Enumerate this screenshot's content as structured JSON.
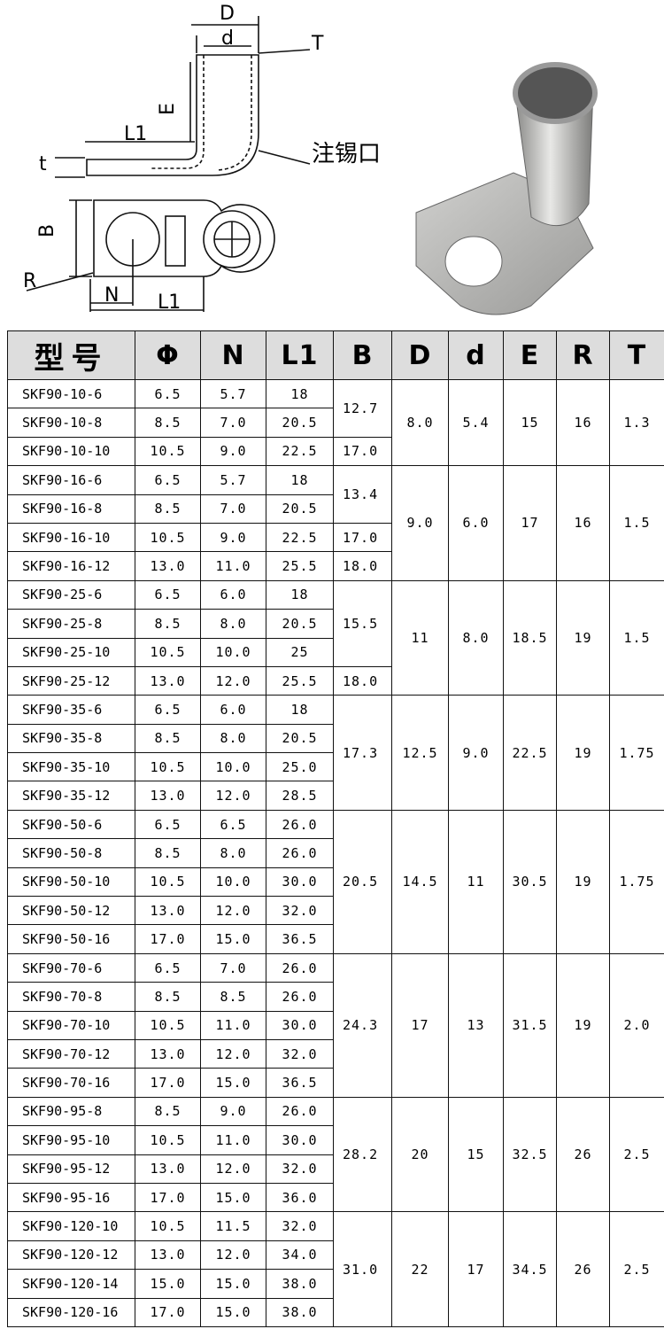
{
  "drawing": {
    "labels": [
      "D",
      "d",
      "T",
      "E",
      "L1",
      "t",
      "B",
      "R",
      "N",
      "L1",
      "注锡口"
    ]
  },
  "table": {
    "header": [
      "型号",
      "Φ",
      "N",
      "L1",
      "B",
      "D",
      "d",
      "E",
      "R",
      "T"
    ],
    "groups": [
      {
        "rows": [
          [
            "SKF90-10-6",
            "6.5",
            "5.7",
            "18",
            "12.7"
          ],
          [
            "SKF90-10-8",
            "8.5",
            "7.0",
            "20.5",
            null
          ],
          [
            "SKF90-10-10",
            "10.5",
            "9.0",
            "22.5",
            "17.0"
          ]
        ],
        "D": "8.0",
        "d": "5.4",
        "E": "15",
        "R": "16",
        "T": "1.3"
      },
      {
        "rows": [
          [
            "SKF90-16-6",
            "6.5",
            "5.7",
            "18",
            "13.4"
          ],
          [
            "SKF90-16-8",
            "8.5",
            "7.0",
            "20.5",
            null
          ],
          [
            "SKF90-16-10",
            "10.5",
            "9.0",
            "22.5",
            "17.0"
          ],
          [
            "SKF90-16-12",
            "13.0",
            "11.0",
            "25.5",
            "18.0"
          ]
        ],
        "D": "9.0",
        "d": "6.0",
        "E": "17",
        "R": "16",
        "T": "1.5"
      },
      {
        "rows": [
          [
            "SKF90-25-6",
            "6.5",
            "6.0",
            "18",
            "15.5"
          ],
          [
            "SKF90-25-8",
            "8.5",
            "8.0",
            "20.5",
            null
          ],
          [
            "SKF90-25-10",
            "10.5",
            "10.0",
            "25",
            null
          ],
          [
            "SKF90-25-12",
            "13.0",
            "12.0",
            "25.5",
            "18.0"
          ]
        ],
        "D": "11",
        "d": "8.0",
        "E": "18.5",
        "R": "19",
        "T": "1.5"
      },
      {
        "rows": [
          [
            "SKF90-35-6",
            "6.5",
            "6.0",
            "18",
            "17.3"
          ],
          [
            "SKF90-35-8",
            "8.5",
            "8.0",
            "20.5",
            null
          ],
          [
            "SKF90-35-10",
            "10.5",
            "10.0",
            "25.0",
            null
          ],
          [
            "SKF90-35-12",
            "13.0",
            "12.0",
            "28.5",
            null
          ]
        ],
        "D": "12.5",
        "d": "9.0",
        "E": "22.5",
        "R": "19",
        "T": "1.75"
      },
      {
        "rows": [
          [
            "SKF90-50-6",
            "6.5",
            "6.5",
            "26.0",
            "20.5"
          ],
          [
            "SKF90-50-8",
            "8.5",
            "8.0",
            "26.0",
            null
          ],
          [
            "SKF90-50-10",
            "10.5",
            "10.0",
            "30.0",
            null
          ],
          [
            "SKF90-50-12",
            "13.0",
            "12.0",
            "32.0",
            null
          ],
          [
            "SKF90-50-16",
            "17.0",
            "15.0",
            "36.5",
            null
          ]
        ],
        "D": "14.5",
        "d": "11",
        "E": "30.5",
        "R": "19",
        "T": "1.75"
      },
      {
        "rows": [
          [
            "SKF90-70-6",
            "6.5",
            "7.0",
            "26.0",
            "24.3"
          ],
          [
            "SKF90-70-8",
            "8.5",
            "8.5",
            "26.0",
            null
          ],
          [
            "SKF90-70-10",
            "10.5",
            "11.0",
            "30.0",
            null
          ],
          [
            "SKF90-70-12",
            "13.0",
            "12.0",
            "32.0",
            null
          ],
          [
            "SKF90-70-16",
            "17.0",
            "15.0",
            "36.5",
            null
          ]
        ],
        "D": "17",
        "d": "13",
        "E": "31.5",
        "R": "19",
        "T": "2.0"
      },
      {
        "rows": [
          [
            "SKF90-95-8",
            "8.5",
            "9.0",
            "26.0",
            "28.2"
          ],
          [
            "SKF90-95-10",
            "10.5",
            "11.0",
            "30.0",
            null
          ],
          [
            "SKF90-95-12",
            "13.0",
            "12.0",
            "32.0",
            null
          ],
          [
            "SKF90-95-16",
            "17.0",
            "15.0",
            "36.0",
            null
          ]
        ],
        "D": "20",
        "d": "15",
        "E": "32.5",
        "R": "26",
        "T": "2.5"
      },
      {
        "rows": [
          [
            "SKF90-120-10",
            "10.5",
            "11.5",
            "32.0",
            "31.0"
          ],
          [
            "SKF90-120-12",
            "13.0",
            "12.0",
            "34.0",
            null
          ],
          [
            "SKF90-120-14",
            "15.0",
            "15.0",
            "38.0",
            null
          ],
          [
            "SKF90-120-16",
            "17.0",
            "15.0",
            "38.0",
            null
          ]
        ],
        "D": "22",
        "d": "17",
        "E": "34.5",
        "R": "26",
        "T": "2.5"
      }
    ]
  }
}
